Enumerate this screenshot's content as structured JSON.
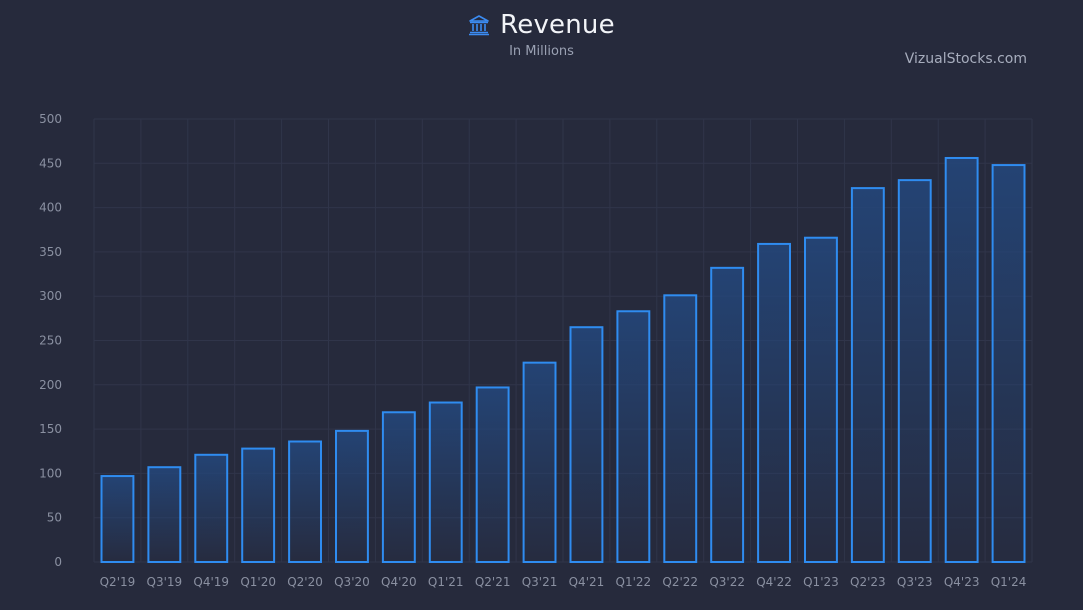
{
  "header": {
    "title": "Revenue",
    "subtitle": "In Millions",
    "watermark": "VizualStocks.com",
    "icon": "bank-icon"
  },
  "colors": {
    "background": "#262a3c",
    "bar_stroke": "#2f8cf0",
    "bar_fill": "#1f3b68",
    "grid": "#30354a",
    "tick_label": "#8a90a1",
    "title": "#f2f4f8",
    "accent_icon": "#3b8cf3"
  },
  "chart_data": {
    "type": "bar",
    "title": "Revenue",
    "subtitle": "In Millions",
    "xlabel": "",
    "ylabel": "",
    "ylim": [
      0,
      500
    ],
    "yticks": [
      0,
      50,
      100,
      150,
      200,
      250,
      300,
      350,
      400,
      450,
      500
    ],
    "grid": true,
    "legend": "none",
    "categories": [
      "Q2'19",
      "Q3'19",
      "Q4'19",
      "Q1'20",
      "Q2'20",
      "Q3'20",
      "Q4'20",
      "Q1'21",
      "Q2'21",
      "Q3'21",
      "Q4'21",
      "Q1'22",
      "Q2'22",
      "Q3'22",
      "Q4'22",
      "Q1'23",
      "Q2'23",
      "Q3'23",
      "Q4'23",
      "Q1'24"
    ],
    "values": [
      97,
      107,
      121,
      128,
      136,
      148,
      169,
      180,
      197,
      225,
      265,
      283,
      301,
      332,
      359,
      366,
      422,
      431,
      456,
      448
    ]
  }
}
